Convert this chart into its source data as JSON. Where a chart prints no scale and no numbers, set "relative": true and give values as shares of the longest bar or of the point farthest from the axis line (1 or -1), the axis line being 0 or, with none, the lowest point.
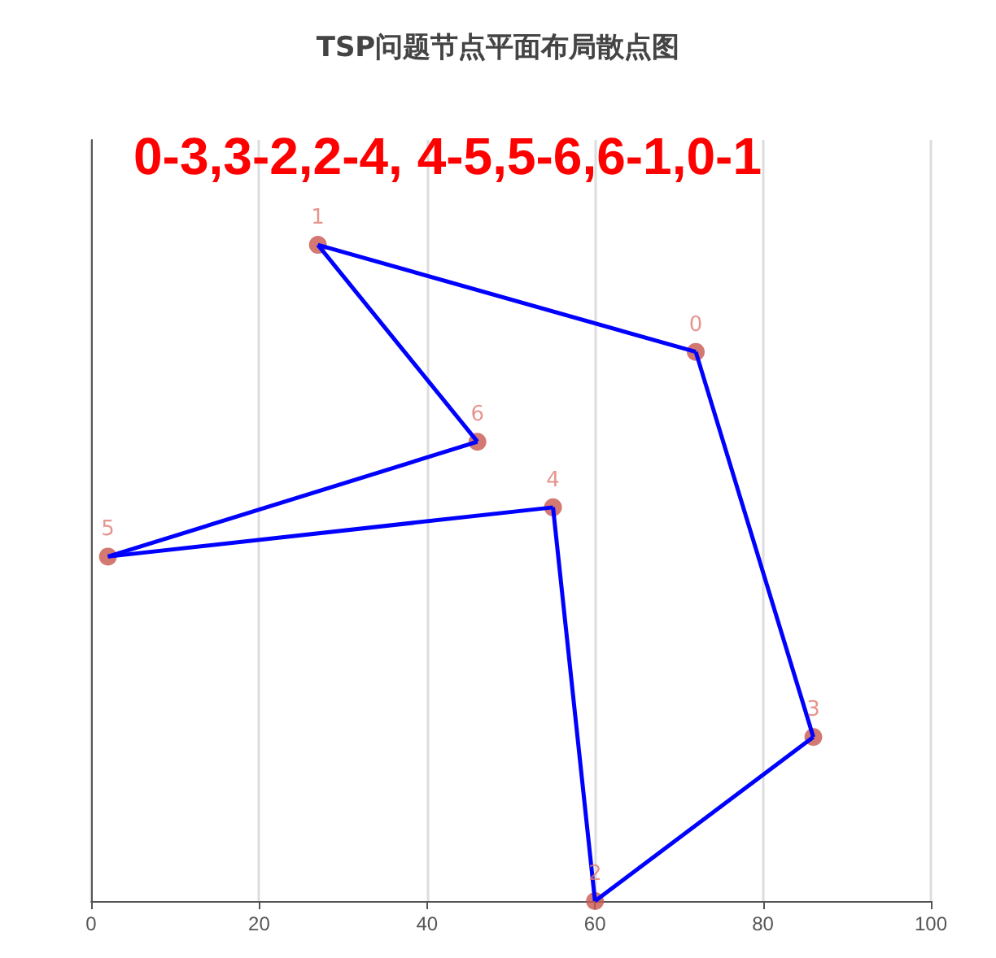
{
  "chart_data": {
    "type": "scatter",
    "title": "TSP问题节点平面布局散点图",
    "relative": true,
    "marker": "circle",
    "grid": "x",
    "xlim": [
      0,
      100
    ],
    "xticks": [
      0,
      20,
      40,
      60,
      80,
      100
    ],
    "series": [
      {
        "color": "#c8574f",
        "x": [
          72,
          27,
          60,
          86,
          55,
          2,
          46
        ],
        "values": [
          0.837,
          1,
          0,
          0.25,
          0.6,
          0.525,
          0.7
        ]
      },
      {
        "type": "line",
        "marker": "none",
        "color": "#0000ff",
        "x": [
          72,
          86
        ],
        "values": [
          0.837,
          0.25
        ]
      },
      {
        "type": "line",
        "marker": "none",
        "color": "#0000ff",
        "x": [
          86,
          60
        ],
        "values": [
          0.25,
          0
        ]
      },
      {
        "type": "line",
        "marker": "none",
        "color": "#0000ff",
        "x": [
          60,
          55
        ],
        "values": [
          0,
          0.6
        ]
      },
      {
        "type": "line",
        "marker": "none",
        "color": "#0000ff",
        "x": [
          55,
          2
        ],
        "values": [
          0.6,
          0.525
        ]
      },
      {
        "type": "line",
        "marker": "none",
        "color": "#0000ff",
        "x": [
          2,
          46
        ],
        "values": [
          0.525,
          0.7
        ]
      },
      {
        "type": "line",
        "marker": "none",
        "color": "#0000ff",
        "x": [
          46,
          27
        ],
        "values": [
          0.7,
          1
        ]
      },
      {
        "type": "line",
        "marker": "none",
        "color": "#0000ff",
        "x": [
          27,
          72
        ],
        "values": [
          1,
          0.837
        ]
      }
    ],
    "annotations": [
      {
        "text": "0",
        "x": 72,
        "y": 0.837
      },
      {
        "text": "1",
        "x": 27,
        "y": 1
      },
      {
        "text": "2",
        "x": 60,
        "y": 0
      },
      {
        "text": "3",
        "x": 86,
        "y": 0.25
      },
      {
        "text": "4",
        "x": 55,
        "y": 0.6
      },
      {
        "text": "5",
        "x": 2,
        "y": 0.525
      },
      {
        "text": "6",
        "x": 46,
        "y": 0.7
      },
      "0-3,3-2,2-4, 4-5,5-6,6-1,0-1"
    ]
  }
}
